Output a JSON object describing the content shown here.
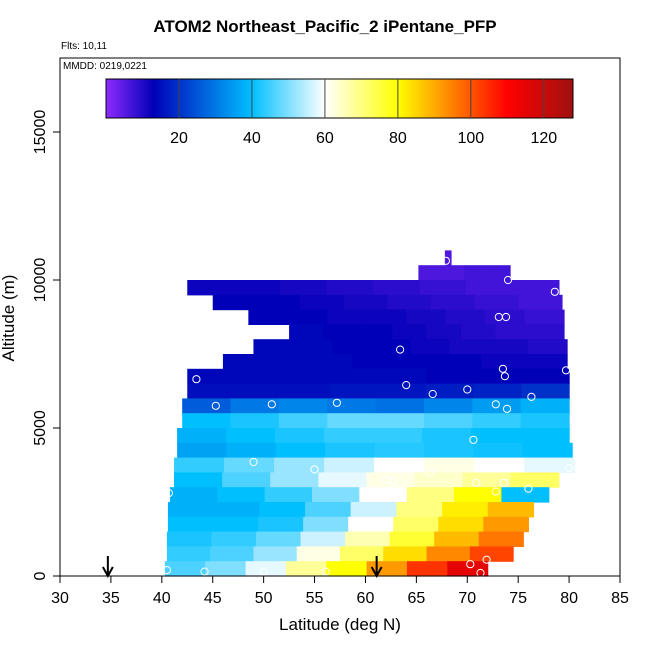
{
  "title": "ATOM2 Northeast_Pacific_2 iPentane_PFP",
  "flights_label": "Flts: 10,11",
  "dates_label": "MMDD: 0219,0221",
  "chart_data": {
    "type": "heatmap",
    "title": "ATOM2 Northeast_Pacific_2 iPentane_PFP",
    "xlabel": "Latitude (deg N)",
    "ylabel": "Altitude (m)",
    "xlim": [
      30,
      85
    ],
    "ylim": [
      0,
      17500
    ],
    "x_ticks": [
      30,
      35,
      40,
      45,
      50,
      55,
      60,
      65,
      70,
      75,
      80,
      85
    ],
    "y_ticks": [
      0,
      5000,
      10000,
      15000
    ],
    "colorbar": {
      "range": [
        0,
        128
      ],
      "ticks": [
        20,
        40,
        60,
        80,
        100,
        120
      ],
      "colors": [
        "#8f2bff",
        "#0000b8",
        "#00bfff",
        "#ffffff",
        "#ffff00",
        "#ff8000",
        "#ff0000",
        "#a01010"
      ],
      "color_stops": [
        0,
        13,
        40,
        60,
        80,
        95,
        110,
        128
      ]
    },
    "arrows_latitude": [
      34.7,
      61.1
    ],
    "field": [
      {
        "alt": 10750,
        "lat_min": 67.8,
        "lat_max": 68.4,
        "values": [
          6
        ]
      },
      {
        "alt": 10250,
        "lat_min": 65.2,
        "lat_max": 74.2,
        "values": [
          6,
          6,
          7,
          7
        ]
      },
      {
        "alt": 9750,
        "lat_min": 42.5,
        "lat_max": 79,
        "values": [
          12,
          12,
          11,
          10,
          9,
          8,
          7,
          7
        ]
      },
      {
        "alt": 9250,
        "lat_min": 45,
        "lat_max": 79.3,
        "values": [
          13,
          13,
          12,
          11,
          10,
          9,
          8,
          7
        ]
      },
      {
        "alt": 8750,
        "lat_min": 48.5,
        "lat_max": 79.5,
        "values": [
          13,
          13,
          12,
          12,
          11,
          10,
          9,
          8
        ]
      },
      {
        "alt": 8250,
        "lat_min": 52.5,
        "lat_max": 79.5,
        "values": [
          14,
          13,
          13,
          12,
          11,
          10,
          9,
          9
        ]
      },
      {
        "alt": 7750,
        "lat_min": 49,
        "lat_max": 79.8,
        "values": [
          14,
          14,
          13,
          13,
          12,
          11,
          11,
          10
        ]
      },
      {
        "alt": 7250,
        "lat_min": 46,
        "lat_max": 79.8,
        "values": [
          14,
          14,
          14,
          13,
          13,
          13,
          12,
          12
        ]
      },
      {
        "alt": 6750,
        "lat_min": 42.5,
        "lat_max": 80,
        "values": [
          14,
          14,
          14,
          14,
          14,
          13,
          13,
          13
        ]
      },
      {
        "alt": 6250,
        "lat_min": 42.5,
        "lat_max": 80,
        "values": [
          15,
          15,
          15,
          16,
          16,
          17,
          18,
          20
        ]
      },
      {
        "alt": 5750,
        "lat_min": 42,
        "lat_max": 80,
        "values": [
          26,
          30,
          32,
          30,
          29,
          32,
          35,
          38
        ]
      },
      {
        "alt": 5250,
        "lat_min": 42,
        "lat_max": 80,
        "values": [
          40,
          42,
          45,
          48,
          48,
          46,
          44,
          42
        ]
      },
      {
        "alt": 4750,
        "lat_min": 41.5,
        "lat_max": 80,
        "values": [
          38,
          40,
          42,
          44,
          44,
          42,
          40,
          40
        ]
      },
      {
        "alt": 4250,
        "lat_min": 41.5,
        "lat_max": 80.3,
        "values": [
          36,
          38,
          40,
          42,
          43,
          42,
          41,
          40
        ]
      },
      {
        "alt": 3750,
        "lat_min": 41.2,
        "lat_max": 80.5,
        "values": [
          44,
          48,
          52,
          56,
          60,
          62,
          60,
          58
        ]
      },
      {
        "alt": 3250,
        "lat_min": 41.2,
        "lat_max": 79,
        "values": [
          40,
          46,
          52,
          58,
          62,
          64,
          68,
          72
        ]
      },
      {
        "alt": 2750,
        "lat_min": 40.8,
        "lat_max": 78,
        "values": [
          38,
          40,
          44,
          50,
          60,
          70,
          80,
          40
        ]
      },
      {
        "alt": 2250,
        "lat_min": 40.6,
        "lat_max": 76.5,
        "values": [
          38,
          38,
          40,
          46,
          56,
          70,
          82,
          88
        ]
      },
      {
        "alt": 1750,
        "lat_min": 40.6,
        "lat_max": 76,
        "values": [
          40,
          40,
          42,
          50,
          60,
          72,
          84,
          92
        ]
      },
      {
        "alt": 1250,
        "lat_min": 40.5,
        "lat_max": 75.5,
        "values": [
          42,
          44,
          48,
          56,
          66,
          76,
          88,
          96
        ]
      },
      {
        "alt": 750,
        "lat_min": 40.5,
        "lat_max": 74.5,
        "values": [
          44,
          46,
          52,
          62,
          72,
          84,
          94,
          102
        ]
      },
      {
        "alt": 250,
        "lat_min": 40.3,
        "lat_max": 72,
        "values": [
          46,
          50,
          58,
          68,
          80,
          92,
          104,
          115
        ]
      }
    ],
    "samples": [
      {
        "lat": 67.9,
        "alt": 10650
      },
      {
        "lat": 74.0,
        "alt": 10000
      },
      {
        "lat": 78.6,
        "alt": 9600
      },
      {
        "lat": 73.1,
        "alt": 8750
      },
      {
        "lat": 73.8,
        "alt": 8750
      },
      {
        "lat": 63.4,
        "alt": 7650
      },
      {
        "lat": 73.5,
        "alt": 7000
      },
      {
        "lat": 73.7,
        "alt": 6750
      },
      {
        "lat": 79.7,
        "alt": 6950
      },
      {
        "lat": 43.4,
        "alt": 6650
      },
      {
        "lat": 64.0,
        "alt": 6450
      },
      {
        "lat": 66.6,
        "alt": 6150
      },
      {
        "lat": 70.0,
        "alt": 6300
      },
      {
        "lat": 76.3,
        "alt": 6050
      },
      {
        "lat": 45.3,
        "alt": 5750
      },
      {
        "lat": 50.8,
        "alt": 5800
      },
      {
        "lat": 57.2,
        "alt": 5850
      },
      {
        "lat": 72.8,
        "alt": 5800
      },
      {
        "lat": 73.9,
        "alt": 5650
      },
      {
        "lat": 70.6,
        "alt": 4600
      },
      {
        "lat": 49.0,
        "alt": 3850
      },
      {
        "lat": 55.0,
        "alt": 3600
      },
      {
        "lat": 80.0,
        "alt": 3650
      },
      {
        "lat": 66.3,
        "alt": 3500
      },
      {
        "lat": 62.1,
        "alt": 3250
      },
      {
        "lat": 62.7,
        "alt": 3200
      },
      {
        "lat": 70.9,
        "alt": 3150
      },
      {
        "lat": 73.6,
        "alt": 3150
      },
      {
        "lat": 76.0,
        "alt": 2950
      },
      {
        "lat": 40.7,
        "alt": 2800
      },
      {
        "lat": 72.8,
        "alt": 2850
      },
      {
        "lat": 71.9,
        "alt": 550
      },
      {
        "lat": 70.3,
        "alt": 400
      },
      {
        "lat": 40.5,
        "alt": 200
      },
      {
        "lat": 44.2,
        "alt": 150
      },
      {
        "lat": 50.0,
        "alt": 150
      },
      {
        "lat": 56.1,
        "alt": 150
      },
      {
        "lat": 71.3,
        "alt": 100
      }
    ]
  }
}
